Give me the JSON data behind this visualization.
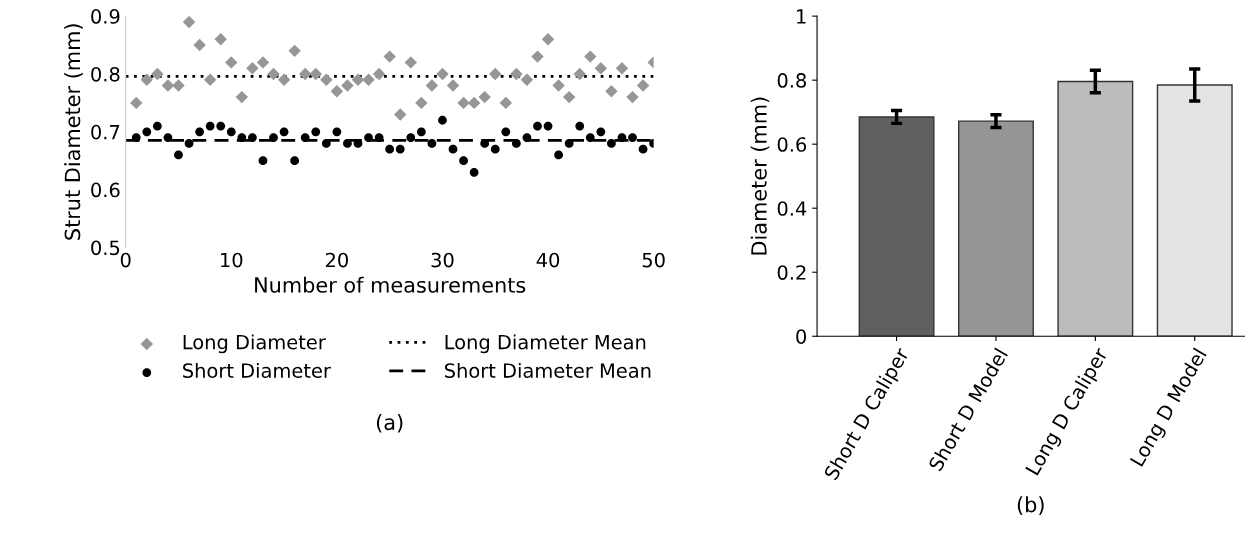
{
  "chart_data": [
    {
      "type": "scatter",
      "title": "(a)",
      "xlabel": "Number of measurements",
      "ylabel": "Strut Diameter (mm)",
      "xlim": [
        0,
        50
      ],
      "ylim": [
        0.5,
        0.9
      ],
      "xticks": [
        0,
        10,
        20,
        30,
        40,
        50
      ],
      "yticks": [
        0.5,
        0.6,
        0.7,
        0.8,
        0.9
      ],
      "grid": false,
      "legend": "bottom",
      "x": [
        1,
        2,
        3,
        4,
        5,
        6,
        7,
        8,
        9,
        10,
        11,
        12,
        13,
        14,
        15,
        16,
        17,
        18,
        19,
        20,
        21,
        22,
        23,
        24,
        25,
        26,
        27,
        28,
        29,
        30,
        31,
        32,
        33,
        34,
        35,
        36,
        37,
        38,
        39,
        40,
        41,
        42,
        43,
        44,
        45,
        46,
        47,
        48,
        49,
        50
      ],
      "series": [
        {
          "name": "Long Diameter",
          "color": "#969696",
          "marker": "diamond",
          "values": [
            0.75,
            0.79,
            0.8,
            0.78,
            0.78,
            0.89,
            0.85,
            0.79,
            0.86,
            0.82,
            0.76,
            0.81,
            0.82,
            0.8,
            0.79,
            0.84,
            0.8,
            0.8,
            0.79,
            0.77,
            0.78,
            0.79,
            0.79,
            0.8,
            0.83,
            0.73,
            0.82,
            0.75,
            0.78,
            0.8,
            0.78,
            0.75,
            0.75,
            0.76,
            0.8,
            0.75,
            0.8,
            0.79,
            0.83,
            0.86,
            0.78,
            0.76,
            0.8,
            0.83,
            0.81,
            0.77,
            0.81,
            0.76,
            0.78,
            0.82
          ]
        },
        {
          "name": "Short Diameter",
          "color": "#000000",
          "marker": "circle",
          "values": [
            0.69,
            0.7,
            0.71,
            0.69,
            0.66,
            0.68,
            0.7,
            0.71,
            0.71,
            0.7,
            0.69,
            0.69,
            0.65,
            0.69,
            0.7,
            0.65,
            0.69,
            0.7,
            0.68,
            0.7,
            0.68,
            0.68,
            0.69,
            0.69,
            0.67,
            0.67,
            0.69,
            0.7,
            0.68,
            0.72,
            0.67,
            0.65,
            0.63,
            0.68,
            0.67,
            0.7,
            0.68,
            0.69,
            0.71,
            0.71,
            0.66,
            0.68,
            0.71,
            0.69,
            0.7,
            0.68,
            0.69,
            0.69,
            0.67,
            0.68
          ]
        }
      ],
      "ref_lines": [
        {
          "axis": "y",
          "value": 0.796,
          "label": "Long Diameter Mean",
          "color": "#000000",
          "line_style": "dotted"
        },
        {
          "axis": "y",
          "value": 0.685,
          "label": "Short Diameter Mean",
          "color": "#000000",
          "line_style": "dashed"
        }
      ]
    },
    {
      "type": "bar",
      "title": "(b)",
      "ylabel": "Diameter (mm)",
      "ylim": [
        0,
        1
      ],
      "yticks": [
        0,
        0.2,
        0.4,
        0.6,
        0.8,
        1
      ],
      "grid": false,
      "categories": [
        "Short D Caliper",
        "Short D Model",
        "Long D Caliper",
        "Long D Model"
      ],
      "values": [
        0.685,
        0.672,
        0.796,
        0.785
      ],
      "errors": [
        0.02,
        0.02,
        0.035,
        0.05
      ],
      "colors": [
        "#606060",
        "#969696",
        "#bcbcbc",
        "#e4e4e4"
      ]
    }
  ]
}
